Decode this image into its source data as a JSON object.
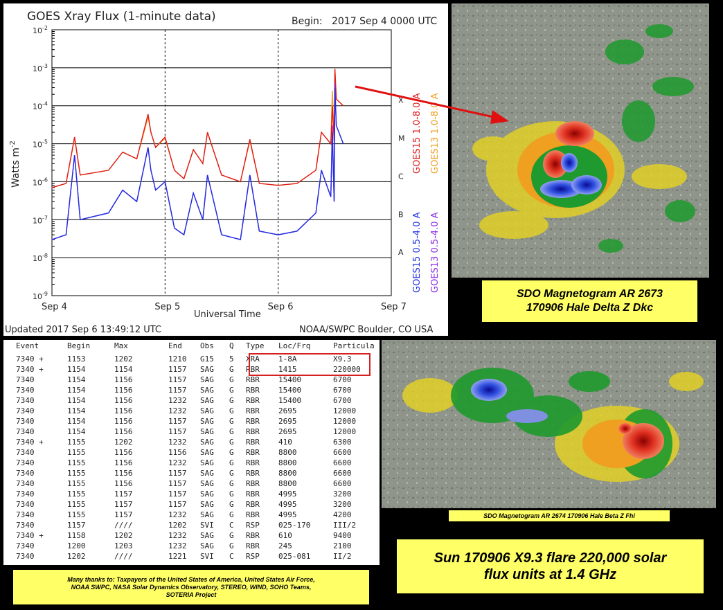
{
  "plot": {
    "title": "GOES Xray Flux (1-minute data)",
    "begin_label": "Begin:",
    "begin_value": "2017 Sep 4 0000 UTC",
    "ylabel": "Watts m",
    "ylabel_sup": "-2",
    "xlabel": "Universal Time",
    "updated": "Updated 2017 Sep  6 13:49:12 UTC",
    "credit": "NOAA/SWPC Boulder, CO USA",
    "legend": {
      "goes15_long": "GOES15 1.0-8.0 A",
      "goes13_long": "GOES13 1.0-8.0 A",
      "goes15_short": "GOES15 0.5-4.0 A",
      "goes13_short": "GOES13 0.5-4.0 A"
    }
  },
  "chart_data": {
    "type": "line",
    "title": "GOES Xray Flux (1-minute data)",
    "xlabel": "Universal Time",
    "ylabel": "Watts m-2",
    "yscale": "log",
    "ylim": [
      1e-09,
      0.01
    ],
    "xlim": [
      "2017-09-04 00:00",
      "2017-09-07 00:00"
    ],
    "x_ticks": [
      "Sep 4",
      "Sep 5",
      "Sep 6",
      "Sep 7"
    ],
    "y_ticks": [
      "10^-9",
      "10^-8",
      "10^-7",
      "10^-6",
      "10^-5",
      "10^-4",
      "10^-3",
      "10^-2"
    ],
    "flare_classes": [
      "A",
      "B",
      "C",
      "M",
      "X"
    ],
    "grid": true,
    "legend_position": "right",
    "colors": {
      "goes15_long": "#e01b1b",
      "goes13_long": "#f0a020",
      "goes15_short": "#1f2fe0",
      "goes13_short": "#8a2be2"
    },
    "x": [
      "09-04 00:00",
      "09-04 03:00",
      "09-04 04:48",
      "09-04 06:00",
      "09-04 12:00",
      "09-04 15:00",
      "09-04 18:00",
      "09-04 20:24",
      "09-04 21:00",
      "09-04 22:00",
      "09-05 00:00",
      "09-05 02:00",
      "09-05 04:00",
      "09-05 06:00",
      "09-05 08:00",
      "09-05 09:00",
      "09-05 12:00",
      "09-05 16:00",
      "09-05 18:00",
      "09-05 20:00",
      "09-06 00:00",
      "09-06 04:00",
      "09-06 08:00",
      "09-06 09:10",
      "09-06 11:10",
      "09-06 11:30",
      "09-06 11:53",
      "09-06 12:02",
      "09-06 12:20",
      "09-06 13:49"
    ],
    "series": [
      {
        "name": "GOES15 1.0-8.0 A",
        "values": [
          7e-07,
          9e-07,
          1.5e-05,
          1.5e-06,
          2e-06,
          6e-06,
          4e-06,
          6e-05,
          2e-05,
          8e-06,
          1.5e-05,
          2e-06,
          1.2e-06,
          7e-06,
          3e-06,
          2e-05,
          1.5e-06,
          1e-06,
          1.3e-05,
          9e-07,
          8e-07,
          9e-07,
          2e-06,
          2e-05,
          1e-05,
          0.0001,
          1.2e-05,
          0.00093,
          0.00015,
          0.0001
        ]
      },
      {
        "name": "GOES13 1.0-8.0 A",
        "values": [
          7e-07,
          9e-07,
          1.4e-05,
          1.5e-06,
          2e-06,
          6e-06,
          4e-06,
          5e-05,
          2e-05,
          8e-06,
          1.4e-05,
          2e-06,
          1.2e-06,
          7e-06,
          3e-06,
          2e-05,
          1.5e-06,
          1e-06,
          1.2e-05,
          9e-07,
          8e-07,
          9e-07,
          2e-06,
          2e-05,
          1e-05,
          0.00025,
          1.2e-05,
          0.00093,
          0.00015,
          0.0001
        ]
      },
      {
        "name": "GOES15 0.5-4.0 A",
        "values": [
          3e-08,
          4e-08,
          5e-06,
          1e-07,
          1.5e-07,
          6e-07,
          3e-07,
          8e-06,
          2e-06,
          6e-07,
          1e-06,
          6e-08,
          4e-08,
          5e-07,
          1e-07,
          1.5e-06,
          4e-08,
          3e-08,
          1.5e-06,
          5e-08,
          4e-08,
          5e-08,
          1.5e-07,
          2e-06,
          4e-07,
          2e-05,
          3e-07,
          0.0003,
          3e-05,
          1e-05
        ]
      },
      {
        "name": "GOES13 0.5-4.0 A",
        "values": [
          3e-08,
          4e-08,
          5e-06,
          1e-07,
          1.5e-07,
          6e-07,
          3e-07,
          8e-06,
          2e-06,
          6e-07,
          1e-06,
          6e-08,
          4e-08,
          5e-07,
          1e-07,
          1.5e-06,
          4e-08,
          3e-08,
          1.5e-06,
          5e-08,
          4e-08,
          5e-08,
          1.5e-07,
          2e-06,
          4e-07,
          3e-05,
          3e-07,
          0.0004,
          3e-05,
          1e-05
        ]
      }
    ]
  },
  "magnetogram1": {
    "caption_line1": "SDO Magnetogram AR 2673",
    "caption_line2": "170906  Hale Delta     Z Dkc"
  },
  "magnetogram2": {
    "caption": "SDO Magnetogram AR 2674 170906 Hale Beta    Z Fhi"
  },
  "headline": {
    "line1": "Sun 170906 X9.3 flare 220,000 solar",
    "line2": "flux units at 1.4 GHz"
  },
  "thanks": {
    "line1": "Many thanks to: Taxpayers of the United States of America, United States Air Force,",
    "line2": "NOAA SWPC, NASA Solar Dynamics Observatory, STEREO, WIND, SOHO Teams,",
    "line3": "SOTERIA Project"
  },
  "events": {
    "headers": [
      "Event",
      "Begin",
      "Max",
      "End",
      "Obs",
      "Q",
      "Type",
      "Loc/Frq",
      "Particula"
    ],
    "rows": [
      [
        "7340 +",
        "1153",
        "1202",
        "1210",
        "G15",
        "5",
        "XRA",
        "1-8A",
        "X9.3"
      ],
      [
        "7340 +",
        "1154",
        "1154",
        "1157",
        "SAG",
        "G",
        "RBR",
        "1415",
        "220000"
      ],
      [
        "7340",
        "1154",
        "1156",
        "1157",
        "SAG",
        "G",
        "RBR",
        "15400",
        "6700"
      ],
      [
        "7340",
        "1154",
        "1156",
        "1157",
        "SAG",
        "G",
        "RBR",
        "15400",
        "6700"
      ],
      [
        "7340",
        "1154",
        "1156",
        "1232",
        "SAG",
        "G",
        "RBR",
        "15400",
        "6700"
      ],
      [
        "7340",
        "1154",
        "1156",
        "1232",
        "SAG",
        "G",
        "RBR",
        "2695",
        "12000"
      ],
      [
        "7340",
        "1154",
        "1156",
        "1157",
        "SAG",
        "G",
        "RBR",
        "2695",
        "12000"
      ],
      [
        "7340",
        "1154",
        "1156",
        "1157",
        "SAG",
        "G",
        "RBR",
        "2695",
        "12000"
      ],
      [
        "7340 +",
        "1155",
        "1202",
        "1232",
        "SAG",
        "G",
        "RBR",
        "410",
        "6300"
      ],
      [
        "7340",
        "1155",
        "1156",
        "1156",
        "SAG",
        "G",
        "RBR",
        "8800",
        "6600"
      ],
      [
        "7340",
        "1155",
        "1156",
        "1232",
        "SAG",
        "G",
        "RBR",
        "8800",
        "6600"
      ],
      [
        "7340",
        "1155",
        "1156",
        "1157",
        "SAG",
        "G",
        "RBR",
        "8800",
        "6600"
      ],
      [
        "7340",
        "1155",
        "1156",
        "1157",
        "SAG",
        "G",
        "RBR",
        "8800",
        "6600"
      ],
      [
        "7340",
        "1155",
        "1157",
        "1157",
        "SAG",
        "G",
        "RBR",
        "4995",
        "3200"
      ],
      [
        "7340",
        "1155",
        "1157",
        "1157",
        "SAG",
        "G",
        "RBR",
        "4995",
        "3200"
      ],
      [
        "7340",
        "1155",
        "1157",
        "1232",
        "SAG",
        "G",
        "RBR",
        "4995",
        "4200"
      ],
      [
        "7340",
        "1157",
        "////",
        "1202",
        "SVI",
        "C",
        "RSP",
        "025-170",
        "III/2"
      ],
      [
        "7340 +",
        "1158",
        "1202",
        "1232",
        "SAG",
        "G",
        "RBR",
        "610",
        "9400"
      ],
      [
        "7340",
        "1200",
        "1203",
        "1232",
        "SAG",
        "G",
        "RBR",
        "245",
        "2100"
      ],
      [
        "7340",
        "1202",
        "////",
        "1221",
        "SVI",
        "C",
        "RSP",
        "025-081",
        "II/2"
      ]
    ]
  }
}
